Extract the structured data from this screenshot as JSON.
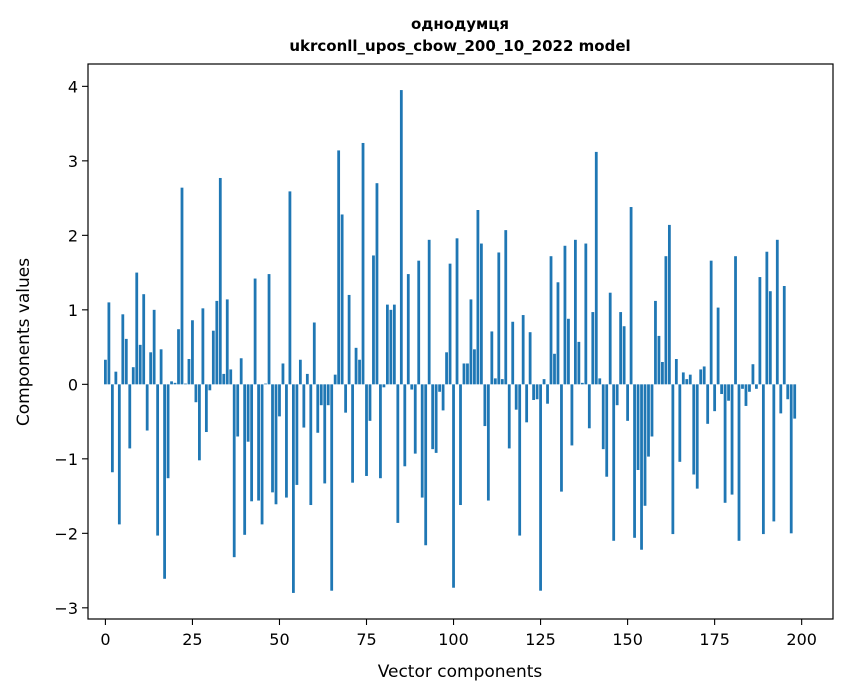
{
  "chart_data": {
    "type": "bar",
    "title_line1": "однодумця",
    "title_line2": "ukrconll_upos_cbow_200_10_2022 model",
    "xlabel": "Vector components",
    "ylabel": "Components values",
    "xlim": [
      -5,
      209
    ],
    "ylim": [
      -3.15,
      4.3
    ],
    "xticks": [
      0,
      25,
      50,
      75,
      100,
      125,
      150,
      175,
      200
    ],
    "yticks": [
      -3,
      -2,
      -1,
      0,
      1,
      2,
      3,
      4
    ],
    "xtick_labels": [
      "0",
      "25",
      "50",
      "75",
      "100",
      "125",
      "150",
      "175",
      "200"
    ],
    "ytick_labels": [
      "−3",
      "−2",
      "−1",
      "0",
      "1",
      "2",
      "3",
      "4"
    ],
    "bar_color": "#1f77b4",
    "values": [
      0.33,
      1.1,
      -1.18,
      0.17,
      -1.88,
      0.94,
      0.61,
      -0.86,
      0.23,
      1.5,
      0.53,
      1.21,
      -0.62,
      0.43,
      1.0,
      -2.03,
      0.47,
      -2.61,
      -1.26,
      0.04,
      0.02,
      0.74,
      2.64,
      0.01,
      0.34,
      0.86,
      -0.24,
      -1.02,
      1.02,
      -0.64,
      -0.08,
      0.72,
      1.12,
      2.77,
      0.14,
      1.14,
      0.2,
      -2.32,
      -0.7,
      0.35,
      -2.02,
      -0.77,
      -1.57,
      1.42,
      -1.56,
      -1.88,
      0.01,
      1.48,
      -1.45,
      -1.61,
      -0.43,
      0.28,
      -1.52,
      2.59,
      -2.8,
      -1.35,
      0.33,
      -0.58,
      0.14,
      -1.62,
      0.83,
      -0.65,
      -0.28,
      -1.33,
      -0.28,
      -2.77,
      0.13,
      3.14,
      2.28,
      -0.38,
      1.2,
      -1.32,
      0.49,
      0.33,
      3.24,
      -1.23,
      -0.49,
      1.73,
      2.7,
      -1.26,
      -0.04,
      1.07,
      1.0,
      1.07,
      -1.86,
      3.95,
      -1.1,
      1.48,
      -0.07,
      -0.93,
      1.66,
      -1.52,
      -2.16,
      1.94,
      -0.87,
      -0.92,
      -0.1,
      -0.35,
      0.43,
      1.62,
      -2.73,
      1.96,
      -1.62,
      0.28,
      0.28,
      1.14,
      0.47,
      2.34,
      1.89,
      -0.56,
      -1.56,
      0.71,
      0.08,
      1.77,
      0.07,
      2.07,
      -0.86,
      0.84,
      -0.34,
      -2.03,
      0.93,
      -0.51,
      0.7,
      -0.21,
      -0.2,
      -2.77,
      0.07,
      -0.26,
      1.72,
      0.41,
      1.37,
      -1.44,
      1.86,
      0.88,
      -0.82,
      1.94,
      0.57,
      0.02,
      1.89,
      -0.59,
      0.97,
      3.12,
      0.08,
      -0.87,
      -1.24,
      1.23,
      -2.1,
      -0.28,
      0.97,
      0.78,
      -0.49,
      2.38,
      -2.06,
      -1.15,
      -2.22,
      -1.63,
      -0.97,
      -0.7,
      1.12,
      0.65,
      0.3,
      1.72,
      2.14,
      -2.01,
      0.34,
      -1.04,
      0.16,
      0.07,
      0.13,
      -1.21,
      -1.4,
      0.2,
      0.24,
      -0.53,
      1.66,
      -0.36,
      1.03,
      -0.13,
      -1.59,
      -0.22,
      -1.48,
      1.72,
      -2.1,
      -0.06,
      -0.29,
      -0.1,
      0.27,
      -0.06,
      1.44,
      -2.01,
      1.78,
      1.25,
      -1.84,
      1.94,
      -0.39,
      1.32,
      -0.2,
      -2.0,
      -0.46
    ]
  }
}
